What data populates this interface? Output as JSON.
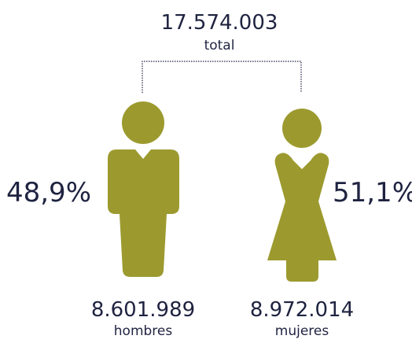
{
  "total": {
    "value": "17.574.003",
    "label": "total"
  },
  "groups": [
    {
      "percent": "48,9%",
      "value": "8.601.989",
      "label": "hombres"
    },
    {
      "percent": "51,1%",
      "value": "8.972.014",
      "label": "mujeres"
    }
  ]
}
